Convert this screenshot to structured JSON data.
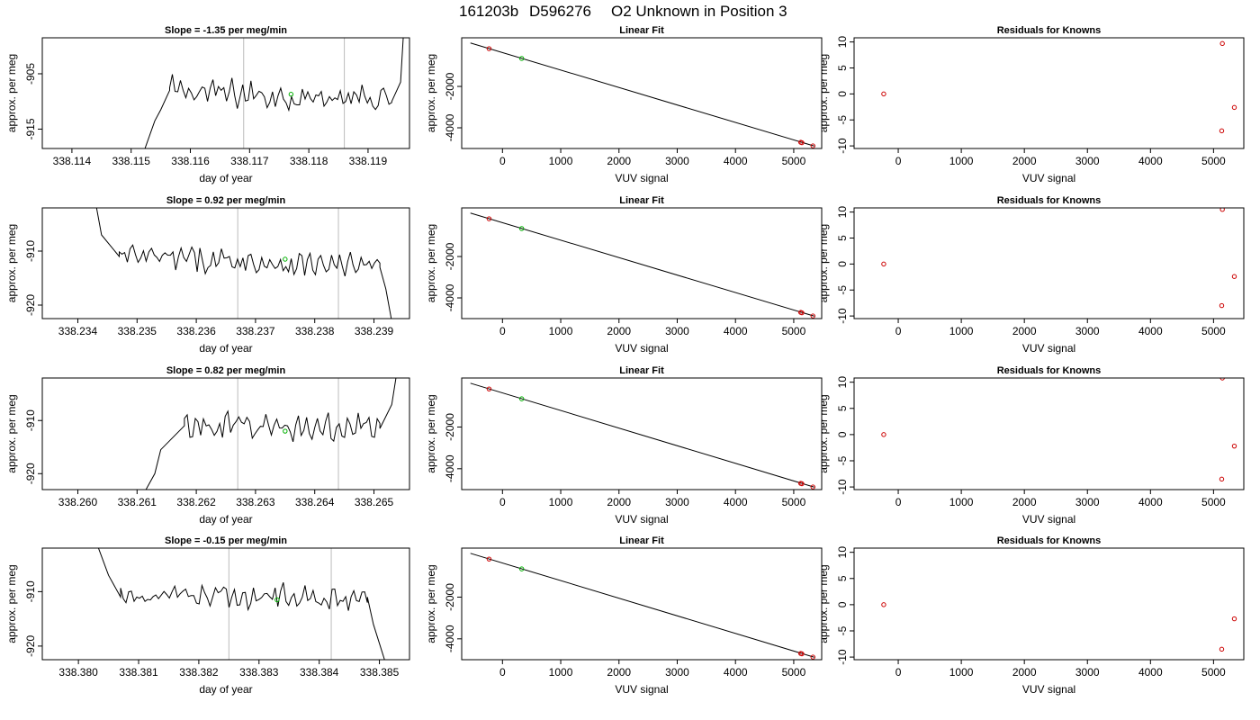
{
  "suptitle": {
    "date": "161203b",
    "tank": "D596276",
    "desc": "O2 Unknown in Position  3"
  },
  "colors": {
    "trace": "#000000",
    "known": "#cc0000",
    "unknown": "#00b000",
    "vline": "#bbbbbb"
  },
  "chart_data": [
    {
      "type": "line",
      "title": "Slope =  -1.35  per meg/min",
      "xlabel": "day of year",
      "ylabel": "approx. per meg",
      "xlim": [
        338.1135,
        338.1197
      ],
      "ylim": [
        -918.5,
        -898.5
      ],
      "xticks": [
        338.114,
        338.115,
        338.116,
        338.117,
        338.118,
        338.119
      ],
      "xticklabels": [
        "338.114",
        "338.115",
        "338.116",
        "338.117",
        "338.118",
        "338.119"
      ],
      "yticks": [
        -905,
        -915
      ],
      "yticklabels": [
        "-905",
        "-915"
      ],
      "vlines": [
        338.1169,
        338.1186
      ],
      "marker": {
        "x": 338.1177,
        "y": -908.7
      },
      "segments": [
        [
          338.1152,
          -919.5,
          338.1154,
          -913.5,
          338.1155,
          -911.5,
          338.11565,
          -908
        ],
        [
          338.11565,
          -908,
          338.1194,
          -910
        ],
        [
          338.1194,
          -910,
          338.11955,
          -906.5,
          338.1196,
          -897.5
        ]
      ],
      "noise_amp": 2.0
    },
    {
      "type": "line",
      "title": "Slope =  0.92  per meg/min",
      "xlabel": "day of year",
      "ylabel": "approx. per meg",
      "xlim": [
        338.2334,
        338.2396
      ],
      "ylim": [
        -922.5,
        -902
      ],
      "xticks": [
        338.234,
        338.235,
        338.236,
        338.237,
        338.238,
        338.239
      ],
      "xticklabels": [
        "338.234",
        "338.235",
        "338.236",
        "338.237",
        "338.238",
        "338.239"
      ],
      "yticks": [
        -910,
        -920
      ],
      "yticklabels": [
        "-910",
        "-920"
      ],
      "vlines": [
        338.2367,
        338.2384
      ],
      "marker": {
        "x": 338.2375,
        "y": -911.5
      },
      "segments": [
        [
          338.2343,
          -901,
          338.2344,
          -907,
          338.2347,
          -911
        ],
        [
          338.2347,
          -911,
          338.2391,
          -913
        ],
        [
          338.2391,
          -913,
          338.2392,
          -917,
          338.2393,
          -923
        ]
      ],
      "noise_amp": 1.8
    },
    {
      "type": "line",
      "title": "Slope =  0.82  per meg/min",
      "xlabel": "day of year",
      "ylabel": "approx. per meg",
      "xlim": [
        338.2594,
        338.2656
      ],
      "ylim": [
        -923,
        -902
      ],
      "xticks": [
        338.26,
        338.261,
        338.262,
        338.263,
        338.264,
        338.265
      ],
      "xticklabels": [
        "338.260",
        "338.261",
        "338.262",
        "338.263",
        "338.264",
        "338.265"
      ],
      "yticks": [
        -910,
        -920
      ],
      "yticklabels": [
        "-910",
        "-920"
      ],
      "vlines": [
        338.2627,
        338.2644
      ],
      "marker": {
        "x": 338.2635,
        "y": -912
      },
      "segments": [
        [
          338.2611,
          -924,
          338.2613,
          -920,
          338.2614,
          -915.5
        ],
        [
          338.2614,
          -915.5,
          338.2618,
          -911
        ],
        [
          338.2618,
          -911,
          338.2651,
          -911.5
        ],
        [
          338.2651,
          -911.5,
          338.2653,
          -907,
          338.2654,
          -900
        ]
      ],
      "noise_amp": 2.0
    },
    {
      "type": "line",
      "title": "Slope =  -0.15  per meg/min",
      "xlabel": "day of year",
      "ylabel": "approx. per meg",
      "xlim": [
        338.3794,
        338.3855
      ],
      "ylim": [
        -922.5,
        -902
      ],
      "xticks": [
        338.38,
        338.381,
        338.382,
        338.383,
        338.384,
        338.385
      ],
      "xticklabels": [
        "338.380",
        "338.381",
        "338.382",
        "338.383",
        "338.384",
        "338.385"
      ],
      "yticks": [
        -910,
        -920
      ],
      "yticklabels": [
        "-910",
        "-920"
      ],
      "vlines": [
        338.3825,
        338.3842
      ],
      "marker": {
        "x": 338.3833,
        "y": -911.5
      },
      "segments": [
        [
          338.3803,
          -901,
          338.3805,
          -907,
          338.3807,
          -911
        ],
        [
          338.3807,
          -911,
          338.3848,
          -911
        ],
        [
          338.3848,
          -911,
          338.3849,
          -916,
          338.3851,
          -923
        ]
      ],
      "noise_amp": 1.8
    },
    {
      "type": "scatter",
      "title": "Linear Fit",
      "xlabel": "VUV signal",
      "ylabel": "approx. per meg",
      "xlim": [
        -700,
        5480
      ],
      "ylim": [
        -5000,
        350
      ],
      "xticks": [
        0,
        1000,
        2000,
        3000,
        4000,
        5000
      ],
      "xticklabels": [
        "0",
        "1000",
        "2000",
        "3000",
        "4000",
        "5000"
      ],
      "yticks": [
        -2000,
        -4000
      ],
      "yticklabels": [
        "-2000",
        "-4000"
      ],
      "fit_line": [
        [
          -550,
          100
        ],
        [
          5350,
          -4880
        ]
      ],
      "knowns": [
        [
          -230,
          -175
        ],
        [
          5120,
          -4700
        ],
        [
          5140,
          -4720
        ],
        [
          5330,
          -4875
        ]
      ],
      "unknowns": [
        [
          330,
          -648
        ]
      ]
    },
    {
      "type": "scatter",
      "title": "Residuals for Knowns",
      "xlabel": "VUV signal",
      "ylabel": "approx. per meg",
      "xlim": [
        -700,
        5480
      ],
      "ylim": [
        -10.5,
        10.8
      ],
      "xticks": [
        0,
        1000,
        2000,
        3000,
        4000,
        5000
      ],
      "xticklabels": [
        "0",
        "1000",
        "2000",
        "3000",
        "4000",
        "5000"
      ],
      "yticks": [
        10,
        5,
        0,
        -5,
        -10
      ],
      "yticklabels": [
        "10",
        "5",
        "0",
        "-5",
        "-10"
      ],
      "points": [
        [
          -230,
          0
        ],
        [
          5140,
          9.7
        ],
        [
          5130,
          -7.1
        ],
        [
          5330,
          -2.6
        ]
      ]
    },
    {
      "type": "scatter",
      "title": "Linear Fit",
      "xlabel": "VUV signal",
      "ylabel": "approx. per meg",
      "xlim": [
        -700,
        5480
      ],
      "ylim": [
        -5000,
        350
      ],
      "xticks": [
        0,
        1000,
        2000,
        3000,
        4000,
        5000
      ],
      "xticklabels": [
        "0",
        "1000",
        "2000",
        "3000",
        "4000",
        "5000"
      ],
      "yticks": [
        -2000,
        -4000
      ],
      "yticklabels": [
        "-2000",
        "-4000"
      ],
      "fit_line": [
        [
          -550,
          100
        ],
        [
          5350,
          -4880
        ]
      ],
      "knowns": [
        [
          -230,
          -175
        ],
        [
          5120,
          -4700
        ],
        [
          5140,
          -4720
        ],
        [
          5330,
          -4875
        ]
      ],
      "unknowns": [
        [
          330,
          -648
        ]
      ]
    },
    {
      "type": "scatter",
      "title": "Residuals for Knowns",
      "xlabel": "VUV signal",
      "ylabel": "approx. per meg",
      "xlim": [
        -700,
        5480
      ],
      "ylim": [
        -10.5,
        10.8
      ],
      "xticks": [
        0,
        1000,
        2000,
        3000,
        4000,
        5000
      ],
      "xticklabels": [
        "0",
        "1000",
        "2000",
        "3000",
        "4000",
        "5000"
      ],
      "yticks": [
        10,
        5,
        0,
        -5,
        -10
      ],
      "yticklabels": [
        "10",
        "5",
        "0",
        "-5",
        "-10"
      ],
      "points": [
        [
          -230,
          0
        ],
        [
          5140,
          10.5
        ],
        [
          5130,
          -8.0
        ],
        [
          5330,
          -2.4
        ]
      ]
    },
    {
      "type": "scatter",
      "title": "Linear Fit",
      "xlabel": "VUV signal",
      "ylabel": "approx. per meg",
      "xlim": [
        -700,
        5480
      ],
      "ylim": [
        -5000,
        350
      ],
      "xticks": [
        0,
        1000,
        2000,
        3000,
        4000,
        5000
      ],
      "xticklabels": [
        "0",
        "1000",
        "2000",
        "3000",
        "4000",
        "5000"
      ],
      "yticks": [
        -2000,
        -4000
      ],
      "yticklabels": [
        "-2000",
        "-4000"
      ],
      "fit_line": [
        [
          -550,
          100
        ],
        [
          5350,
          -4880
        ]
      ],
      "knowns": [
        [
          -230,
          -175
        ],
        [
          5120,
          -4700
        ],
        [
          5140,
          -4720
        ],
        [
          5330,
          -4875
        ]
      ],
      "unknowns": [
        [
          330,
          -648
        ]
      ]
    },
    {
      "type": "scatter",
      "title": "Residuals for Knowns",
      "xlabel": "VUV signal",
      "ylabel": "approx. per meg",
      "xlim": [
        -700,
        5480
      ],
      "ylim": [
        -10.5,
        10.8
      ],
      "xticks": [
        0,
        1000,
        2000,
        3000,
        4000,
        5000
      ],
      "xticklabels": [
        "0",
        "1000",
        "2000",
        "3000",
        "4000",
        "5000"
      ],
      "yticks": [
        10,
        5,
        0,
        -5,
        -10
      ],
      "yticklabels": [
        "10",
        "5",
        "0",
        "-5",
        "-10"
      ],
      "points": [
        [
          -230,
          0
        ],
        [
          5140,
          10.8
        ],
        [
          5130,
          -8.5
        ],
        [
          5330,
          -2.2
        ]
      ]
    },
    {
      "type": "scatter",
      "title": "Linear Fit",
      "xlabel": "VUV signal",
      "ylabel": "approx. per meg",
      "xlim": [
        -700,
        5480
      ],
      "ylim": [
        -5000,
        350
      ],
      "xticks": [
        0,
        1000,
        2000,
        3000,
        4000,
        5000
      ],
      "xticklabels": [
        "0",
        "1000",
        "2000",
        "3000",
        "4000",
        "5000"
      ],
      "yticks": [
        -2000,
        -4000
      ],
      "yticklabels": [
        "-2000",
        "-4000"
      ],
      "fit_line": [
        [
          -550,
          100
        ],
        [
          5350,
          -4880
        ]
      ],
      "knowns": [
        [
          -230,
          -175
        ],
        [
          5120,
          -4700
        ],
        [
          5140,
          -4720
        ],
        [
          5330,
          -4875
        ]
      ],
      "unknowns": [
        [
          330,
          -648
        ]
      ]
    },
    {
      "type": "scatter",
      "title": "Residuals for Knowns",
      "xlabel": "VUV signal",
      "ylabel": "approx. per meg",
      "xlim": [
        -700,
        5480
      ],
      "ylim": [
        -10.5,
        10.8
      ],
      "xticks": [
        0,
        1000,
        2000,
        3000,
        4000,
        5000
      ],
      "xticklabels": [
        "0",
        "1000",
        "2000",
        "3000",
        "4000",
        "5000"
      ],
      "yticks": [
        10,
        5,
        0,
        -5,
        -10
      ],
      "yticklabels": [
        "10",
        "5",
        "0",
        "-5",
        "-10"
      ],
      "points": [
        [
          -230,
          0
        ],
        [
          5130,
          -8.5
        ],
        [
          5330,
          -2.7
        ]
      ]
    }
  ]
}
